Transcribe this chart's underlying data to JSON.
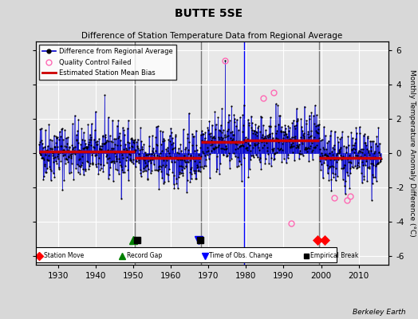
{
  "title": "BUTTE 5SE",
  "subtitle": "Difference of Station Temperature Data from Regional Average",
  "ylabel": "Monthly Temperature Anomaly Difference (°C)",
  "xlabel_ticks": [
    1930,
    1940,
    1950,
    1960,
    1970,
    1980,
    1990,
    2000,
    2010
  ],
  "yticks": [
    -6,
    -4,
    -2,
    0,
    2,
    4,
    6
  ],
  "ylim": [
    -6.5,
    6.5
  ],
  "xlim": [
    1924,
    2018
  ],
  "background_color": "#d8d8d8",
  "plot_bg_color": "#e8e8e8",
  "grid_color": "#ffffff",
  "data_line_color": "#0000cc",
  "data_marker_color": "#000000",
  "bias_line_color": "#cc0000",
  "qc_marker_color": "#ff69b4",
  "watermark": "Berkeley Earth",
  "segment_biases": [
    {
      "start": 1925.0,
      "end": 1950.5,
      "bias": 0.1
    },
    {
      "start": 1950.5,
      "end": 1968.0,
      "bias": -0.3
    },
    {
      "start": 1968.0,
      "end": 1979.5,
      "bias": 0.65
    },
    {
      "start": 1979.5,
      "end": 1999.5,
      "bias": 0.75
    },
    {
      "start": 1999.5,
      "end": 2016.0,
      "bias": -0.3
    }
  ],
  "vertical_lines": [
    1950.5,
    1968.0,
    1979.5,
    1999.5
  ],
  "vertical_line_colors": [
    "#777777",
    "#777777",
    "#0000ff",
    "#777777"
  ],
  "events": {
    "station_moves": [
      1999.0,
      2001.0
    ],
    "record_gaps": [
      1950.0
    ],
    "obs_changes": [
      1967.5
    ],
    "empirical_breaks": [
      1951.0,
      1967.8
    ]
  },
  "qc_failed_points": [
    [
      1974.5,
      5.4
    ],
    [
      1984.5,
      3.2
    ],
    [
      1987.3,
      3.55
    ],
    [
      1992.0,
      -4.1
    ],
    [
      2003.5,
      -2.6
    ],
    [
      2006.8,
      -2.75
    ],
    [
      2007.8,
      -2.5
    ]
  ],
  "segments": [
    {
      "start": 1925.0,
      "end": 1950.5,
      "bias": 0.1,
      "std": 0.85
    },
    {
      "start": 1950.5,
      "end": 1968.0,
      "bias": -0.3,
      "std": 0.85
    },
    {
      "start": 1968.0,
      "end": 1979.5,
      "bias": 0.65,
      "std": 0.85
    },
    {
      "start": 1979.5,
      "end": 1999.5,
      "bias": 0.75,
      "std": 0.8
    },
    {
      "start": 1999.5,
      "end": 2016.0,
      "bias": -0.3,
      "std": 0.85
    }
  ]
}
